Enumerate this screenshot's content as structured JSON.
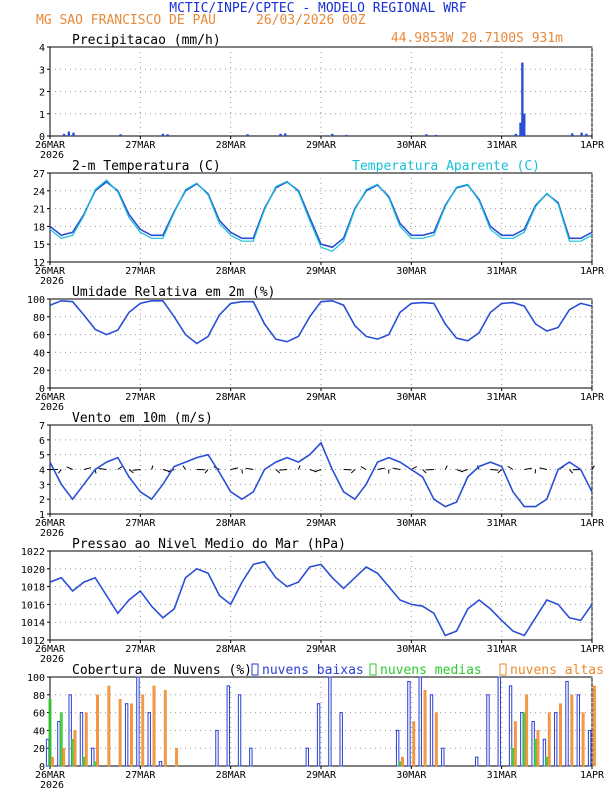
{
  "header": {
    "title": "MCTIC/INPE/CPTEC - MODELO REGIONAL WRF",
    "location": "MG SAO FRANCISCO DE PAU",
    "run": "26/03/2026 00Z",
    "coords": "44.9853W 20.7100S 931m"
  },
  "colors": {
    "title": "#1a2fd6",
    "location": "#e8893a",
    "series_main": "#2a4fd6",
    "series_apparent": "#18c0d8",
    "low_clouds": "#2a3fd6",
    "mid_clouds": "#2ec82e",
    "high_clouds": "#ee8a2a"
  },
  "xaxis": {
    "ticks": [
      "26MAR",
      "27MAR",
      "28MAR",
      "29MAR",
      "30MAR",
      "31MAR",
      "1APR"
    ],
    "year": "2026",
    "hours": 144
  },
  "chart_data": [
    {
      "id": "precip",
      "type": "bar",
      "title": "Precipitacao (mm/h)",
      "ylim": [
        0,
        4
      ],
      "yticks": [
        0,
        1,
        2,
        3,
        4
      ],
      "bar_hours": [
        3.75,
        5,
        6.25,
        18.75,
        30,
        31.25,
        52.5,
        61.25,
        62.5,
        75,
        78.75,
        100,
        102.5,
        123.75,
        125,
        125.5,
        126,
        138.75,
        141.25,
        142.5
      ],
      "bar_values": [
        0.1,
        0.2,
        0.15,
        0.08,
        0.1,
        0.08,
        0.08,
        0.1,
        0.12,
        0.1,
        0.05,
        0.08,
        0.05,
        0.1,
        0.6,
        3.3,
        1.0,
        0.12,
        0.15,
        0.1
      ]
    },
    {
      "id": "temp",
      "type": "line",
      "title": "2-m Temperatura (C)",
      "legend": "Temperatura Aparente (C)",
      "ylim": [
        12,
        27
      ],
      "yticks": [
        12,
        15,
        18,
        21,
        24,
        27
      ],
      "series": [
        {
          "name": "2-m Temperatura (C)",
          "hours": [
            0,
            3,
            6,
            9,
            12,
            15,
            18,
            21,
            24,
            27,
            30,
            33,
            36,
            39,
            42,
            45,
            48,
            51,
            54,
            57,
            60,
            63,
            66,
            69,
            72,
            75,
            78,
            81,
            84,
            87,
            90,
            93,
            96,
            99,
            102,
            105,
            108,
            111,
            114,
            117,
            120,
            123,
            126,
            129,
            132,
            135,
            138,
            141,
            144
          ],
          "values": [
            18,
            16.5,
            17,
            20,
            24,
            25.5,
            24,
            20,
            17.5,
            16.5,
            16.5,
            20.5,
            24,
            25.2,
            23.5,
            19,
            17,
            16,
            16,
            21,
            24.5,
            25.5,
            24,
            19.5,
            15,
            14.5,
            16,
            21,
            24,
            25,
            23,
            18.5,
            16.5,
            16.5,
            17,
            21.5,
            24.5,
            25,
            22.5,
            18,
            16.5,
            16.5,
            17.5,
            21.5,
            23.5,
            22,
            16,
            16,
            17
          ]
        },
        {
          "name": "Temperatura Aparente (C)",
          "hours": [
            0,
            3,
            6,
            9,
            12,
            15,
            18,
            21,
            24,
            27,
            30,
            33,
            36,
            39,
            42,
            45,
            48,
            51,
            54,
            57,
            60,
            63,
            66,
            69,
            72,
            75,
            78,
            81,
            84,
            87,
            90,
            93,
            96,
            99,
            102,
            105,
            108,
            111,
            114,
            117,
            120,
            123,
            126,
            129,
            132,
            135,
            138,
            141,
            144
          ],
          "values": [
            17.5,
            16,
            16.5,
            19.8,
            24.2,
            25.8,
            23.8,
            19.5,
            17,
            16,
            16,
            20.3,
            24.2,
            25.3,
            23.3,
            18.5,
            16.5,
            15.5,
            15.5,
            20.8,
            24.7,
            25.6,
            23.8,
            19,
            14.5,
            13.8,
            15.5,
            20.8,
            24.2,
            25.1,
            22.8,
            18,
            16,
            16,
            16.5,
            21.3,
            24.6,
            25.1,
            22.3,
            17.5,
            16,
            16,
            17,
            21.3,
            23.6,
            21.8,
            15.5,
            15.5,
            16.5
          ]
        }
      ]
    },
    {
      "id": "rh",
      "type": "line",
      "title": "Umidade Relativa em 2m (%)",
      "ylim": [
        0,
        100
      ],
      "yticks": [
        0,
        20,
        40,
        60,
        80,
        100
      ],
      "series": [
        {
          "name": "Umidade Relativa em 2m (%)",
          "hours": [
            0,
            3,
            6,
            9,
            12,
            15,
            18,
            21,
            24,
            27,
            30,
            33,
            36,
            39,
            42,
            45,
            48,
            51,
            54,
            57,
            60,
            63,
            66,
            69,
            72,
            75,
            78,
            81,
            84,
            87,
            90,
            93,
            96,
            99,
            102,
            105,
            108,
            111,
            114,
            117,
            120,
            123,
            126,
            129,
            132,
            135,
            138,
            141,
            144
          ],
          "values": [
            93,
            98,
            97,
            82,
            66,
            60,
            65,
            85,
            95,
            98,
            98,
            80,
            60,
            50,
            58,
            82,
            95,
            97,
            97,
            72,
            55,
            52,
            58,
            80,
            97,
            98,
            93,
            70,
            58,
            55,
            60,
            85,
            95,
            96,
            95,
            72,
            56,
            53,
            62,
            85,
            95,
            96,
            92,
            72,
            64,
            68,
            88,
            95,
            92
          ]
        }
      ]
    },
    {
      "id": "wind",
      "type": "line",
      "title": "Vento em 10m (m/s)",
      "ylim": [
        1,
        7
      ],
      "yticks": [
        1,
        2,
        3,
        4,
        5,
        6,
        7
      ],
      "series": [
        {
          "name": "Vento em 10m (m/s)",
          "hours": [
            0,
            3,
            6,
            9,
            12,
            15,
            18,
            21,
            24,
            27,
            30,
            33,
            36,
            39,
            42,
            45,
            48,
            51,
            54,
            57,
            60,
            63,
            66,
            69,
            72,
            75,
            78,
            81,
            84,
            87,
            90,
            93,
            96,
            99,
            102,
            105,
            108,
            111,
            114,
            117,
            120,
            123,
            126,
            129,
            132,
            135,
            138,
            141,
            144
          ],
          "values": [
            4.5,
            3.0,
            2.0,
            3.0,
            4.0,
            4.5,
            4.8,
            3.5,
            2.5,
            2.0,
            3.0,
            4.2,
            4.5,
            4.8,
            5.0,
            3.8,
            2.5,
            2.0,
            2.5,
            4.0,
            4.5,
            4.8,
            4.5,
            5.0,
            5.8,
            4.0,
            2.5,
            2.0,
            3.0,
            4.5,
            4.8,
            4.5,
            4.0,
            3.5,
            2.0,
            1.5,
            1.8,
            3.5,
            4.2,
            4.5,
            4.2,
            2.5,
            1.5,
            1.5,
            2.0,
            4.0,
            4.5,
            4.0,
            2.5
          ]
        }
      ]
    },
    {
      "id": "pressure",
      "type": "line",
      "title": "Pressao ao Nivel Medio do Mar (hPa)",
      "ylim": [
        1012,
        1022
      ],
      "yticks": [
        1012,
        1014,
        1016,
        1018,
        1020,
        1022
      ],
      "series": [
        {
          "name": "Pressao ao Nivel Medio do Mar (hPa)",
          "hours": [
            0,
            3,
            6,
            9,
            12,
            15,
            18,
            21,
            24,
            27,
            30,
            33,
            36,
            39,
            42,
            45,
            48,
            51,
            54,
            57,
            60,
            63,
            66,
            69,
            72,
            75,
            78,
            81,
            84,
            87,
            90,
            93,
            96,
            99,
            102,
            105,
            108,
            111,
            114,
            117,
            120,
            123,
            126,
            129,
            132,
            135,
            138,
            141,
            144
          ],
          "values": [
            1018.5,
            1019,
            1017.5,
            1018.5,
            1019,
            1017,
            1015,
            1016.5,
            1017.5,
            1015.8,
            1014.5,
            1015.5,
            1019,
            1020,
            1019.5,
            1017,
            1016,
            1018.5,
            1020.5,
            1020.8,
            1019,
            1018,
            1018.5,
            1020.2,
            1020.5,
            1019,
            1017.8,
            1019,
            1020.2,
            1019.5,
            1018,
            1016.5,
            1016,
            1015.8,
            1015,
            1012.5,
            1013,
            1015.5,
            1016.5,
            1015.5,
            1014.2,
            1013,
            1012.5,
            1014.5,
            1016.5,
            1016,
            1014.5,
            1014.2,
            1016
          ]
        }
      ]
    },
    {
      "id": "clouds",
      "type": "bar",
      "title": "Cobertura de Nuvens (%)",
      "ylim": [
        0,
        100
      ],
      "yticks": [
        0,
        20,
        40,
        60,
        80,
        100
      ],
      "legend": [
        "nuvens baixas",
        "nuvens medias",
        "nuvens altas"
      ],
      "series": [
        {
          "name": "nuvens baixas",
          "hours": [
            0,
            3,
            6,
            9,
            12,
            15,
            18,
            21,
            24,
            27,
            30,
            33,
            36,
            39,
            42,
            45,
            48,
            51,
            54,
            57,
            60,
            63,
            66,
            69,
            72,
            75,
            78,
            81,
            84,
            87,
            90,
            93,
            96,
            99,
            102,
            105,
            108,
            111,
            114,
            117,
            120,
            123,
            126,
            129,
            132,
            135,
            138,
            141,
            144
          ],
          "values": [
            30,
            50,
            80,
            60,
            20,
            0,
            0,
            70,
            100,
            60,
            5,
            0,
            0,
            0,
            0,
            40,
            90,
            80,
            20,
            0,
            0,
            0,
            0,
            20,
            70,
            100,
            60,
            0,
            0,
            0,
            0,
            40,
            95,
            100,
            80,
            20,
            0,
            0,
            10,
            80,
            100,
            90,
            60,
            50,
            30,
            60,
            95,
            80,
            40
          ]
        },
        {
          "name": "nuvens medias",
          "hours": [
            0,
            3,
            6,
            9,
            12,
            15,
            18,
            21,
            24,
            27,
            30,
            33,
            36,
            39,
            42,
            45,
            48,
            51,
            54,
            57,
            60,
            63,
            66,
            69,
            72,
            75,
            78,
            81,
            84,
            87,
            90,
            93,
            96,
            99,
            102,
            105,
            108,
            111,
            114,
            117,
            120,
            123,
            126,
            129,
            132,
            135,
            138,
            141,
            144
          ],
          "values": [
            75,
            60,
            30,
            10,
            5,
            0,
            0,
            0,
            0,
            0,
            0,
            0,
            0,
            0,
            0,
            0,
            0,
            0,
            0,
            0,
            0,
            0,
            0,
            0,
            0,
            0,
            0,
            0,
            0,
            0,
            0,
            5,
            0,
            0,
            0,
            0,
            0,
            0,
            0,
            0,
            0,
            20,
            60,
            30,
            10,
            0,
            0,
            0,
            0
          ]
        },
        {
          "name": "nuvens altas",
          "hours": [
            0,
            3,
            6,
            9,
            12,
            15,
            18,
            21,
            24,
            27,
            30,
            33,
            36,
            39,
            42,
            45,
            48,
            51,
            54,
            57,
            60,
            63,
            66,
            69,
            72,
            75,
            78,
            81,
            84,
            87,
            90,
            93,
            96,
            99,
            102,
            105,
            108,
            111,
            114,
            117,
            120,
            123,
            126,
            129,
            132,
            135,
            138,
            141,
            144
          ],
          "values": [
            10,
            20,
            40,
            60,
            80,
            90,
            75,
            70,
            80,
            90,
            85,
            20,
            0,
            0,
            0,
            0,
            0,
            0,
            0,
            0,
            0,
            0,
            0,
            0,
            0,
            0,
            0,
            0,
            0,
            0,
            0,
            10,
            50,
            85,
            60,
            0,
            0,
            0,
            0,
            0,
            0,
            50,
            80,
            40,
            60,
            70,
            80,
            60,
            90
          ]
        }
      ]
    }
  ]
}
